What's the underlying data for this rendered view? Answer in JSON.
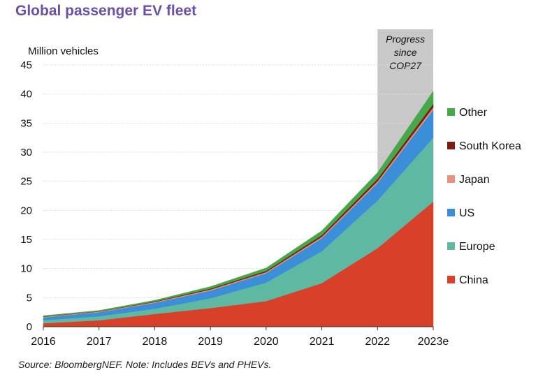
{
  "chart_data": {
    "type": "area",
    "title": "Global passenger EV fleet",
    "ylabel": "Million vehicles",
    "xlabel": "",
    "categories": [
      "2016",
      "2017",
      "2018",
      "2019",
      "2020",
      "2021",
      "2022",
      "2023e"
    ],
    "ylim": [
      0,
      45
    ],
    "yticks": [
      0,
      5,
      10,
      15,
      20,
      25,
      30,
      35,
      40,
      45
    ],
    "stacked": true,
    "grid": true,
    "legend_position": "right",
    "series": [
      {
        "name": "China",
        "color": "#d9402a",
        "values": [
          0.6,
          1.1,
          2.2,
          3.2,
          4.4,
          7.5,
          13.5,
          21.5
        ]
      },
      {
        "name": "Europe",
        "color": "#5fb8a2",
        "values": [
          0.5,
          0.7,
          0.9,
          1.7,
          3.2,
          5.5,
          8.2,
          11.0
        ]
      },
      {
        "name": "US",
        "color": "#3a8fd8",
        "values": [
          0.5,
          0.7,
          1.0,
          1.3,
          1.6,
          2.2,
          3.0,
          4.8
        ]
      },
      {
        "name": "Japan",
        "color": "#e8917f",
        "values": [
          0.1,
          0.1,
          0.15,
          0.2,
          0.2,
          0.25,
          0.3,
          0.4
        ]
      },
      {
        "name": "South Korea",
        "color": "#7a1f10",
        "values": [
          0.05,
          0.05,
          0.1,
          0.15,
          0.2,
          0.3,
          0.4,
          0.6
        ]
      },
      {
        "name": "Other",
        "color": "#46a84a",
        "values": [
          0.15,
          0.15,
          0.2,
          0.35,
          0.5,
          0.75,
          1.1,
          2.2
        ]
      }
    ],
    "highlight": {
      "label": "Progress since COP27",
      "label_lines": [
        "Progress",
        "since",
        "COP27"
      ],
      "from": "2022",
      "to": "2023e",
      "color": "#c8c8c8"
    }
  },
  "source": "Source: BloombergNEF. Note: Includes BEVs and PHEVs."
}
